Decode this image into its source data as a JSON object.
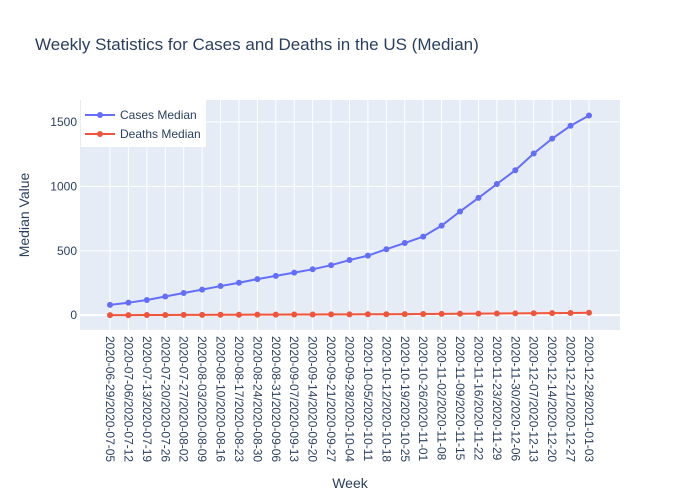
{
  "chart_data": {
    "type": "line",
    "title": "Weekly Statistics for Cases and Deaths in the US (Median)",
    "xlabel": "Week",
    "ylabel": "Median Value",
    "ylim": [
      -115,
      1670
    ],
    "yticks": [
      0,
      500,
      1000,
      1500
    ],
    "grid": true,
    "legend_position": "top-left",
    "categories": [
      "2020-06-29/2020-07-05",
      "2020-07-06/2020-07-12",
      "2020-07-13/2020-07-19",
      "2020-07-20/2020-07-26",
      "2020-07-27/2020-08-02",
      "2020-08-03/2020-08-09",
      "2020-08-10/2020-08-16",
      "2020-08-17/2020-08-23",
      "2020-08-24/2020-08-30",
      "2020-08-31/2020-09-06",
      "2020-09-07/2020-09-13",
      "2020-09-14/2020-09-20",
      "2020-09-21/2020-09-27",
      "2020-09-28/2020-10-04",
      "2020-10-05/2020-10-11",
      "2020-10-12/2020-10-18",
      "2020-10-19/2020-10-25",
      "2020-10-26/2020-11-01",
      "2020-11-02/2020-11-08",
      "2020-11-09/2020-11-15",
      "2020-11-16/2020-11-22",
      "2020-11-23/2020-11-29",
      "2020-11-30/2020-12-06",
      "2020-12-07/2020-12-13",
      "2020-12-14/2020-12-20",
      "2020-12-21/2020-12-27",
      "2020-12-28/2021-01-03"
    ],
    "series": [
      {
        "name": "Cases Median",
        "color": "#636efa",
        "values": [
          80,
          97,
          118,
          145,
          172,
          198,
          226,
          252,
          280,
          305,
          330,
          356,
          388,
          428,
          462,
          512,
          560,
          610,
          695,
          805,
          910,
          1018,
          1125,
          1255,
          1370,
          1470,
          1550
        ]
      },
      {
        "name": "Deaths Median",
        "color": "#ef553b",
        "values": [
          0,
          0,
          1,
          1,
          2,
          2,
          3,
          3,
          4,
          4,
          5,
          5,
          6,
          6,
          7,
          7,
          8,
          9,
          10,
          11,
          12,
          13,
          14,
          15,
          16,
          17,
          19
        ]
      }
    ]
  }
}
